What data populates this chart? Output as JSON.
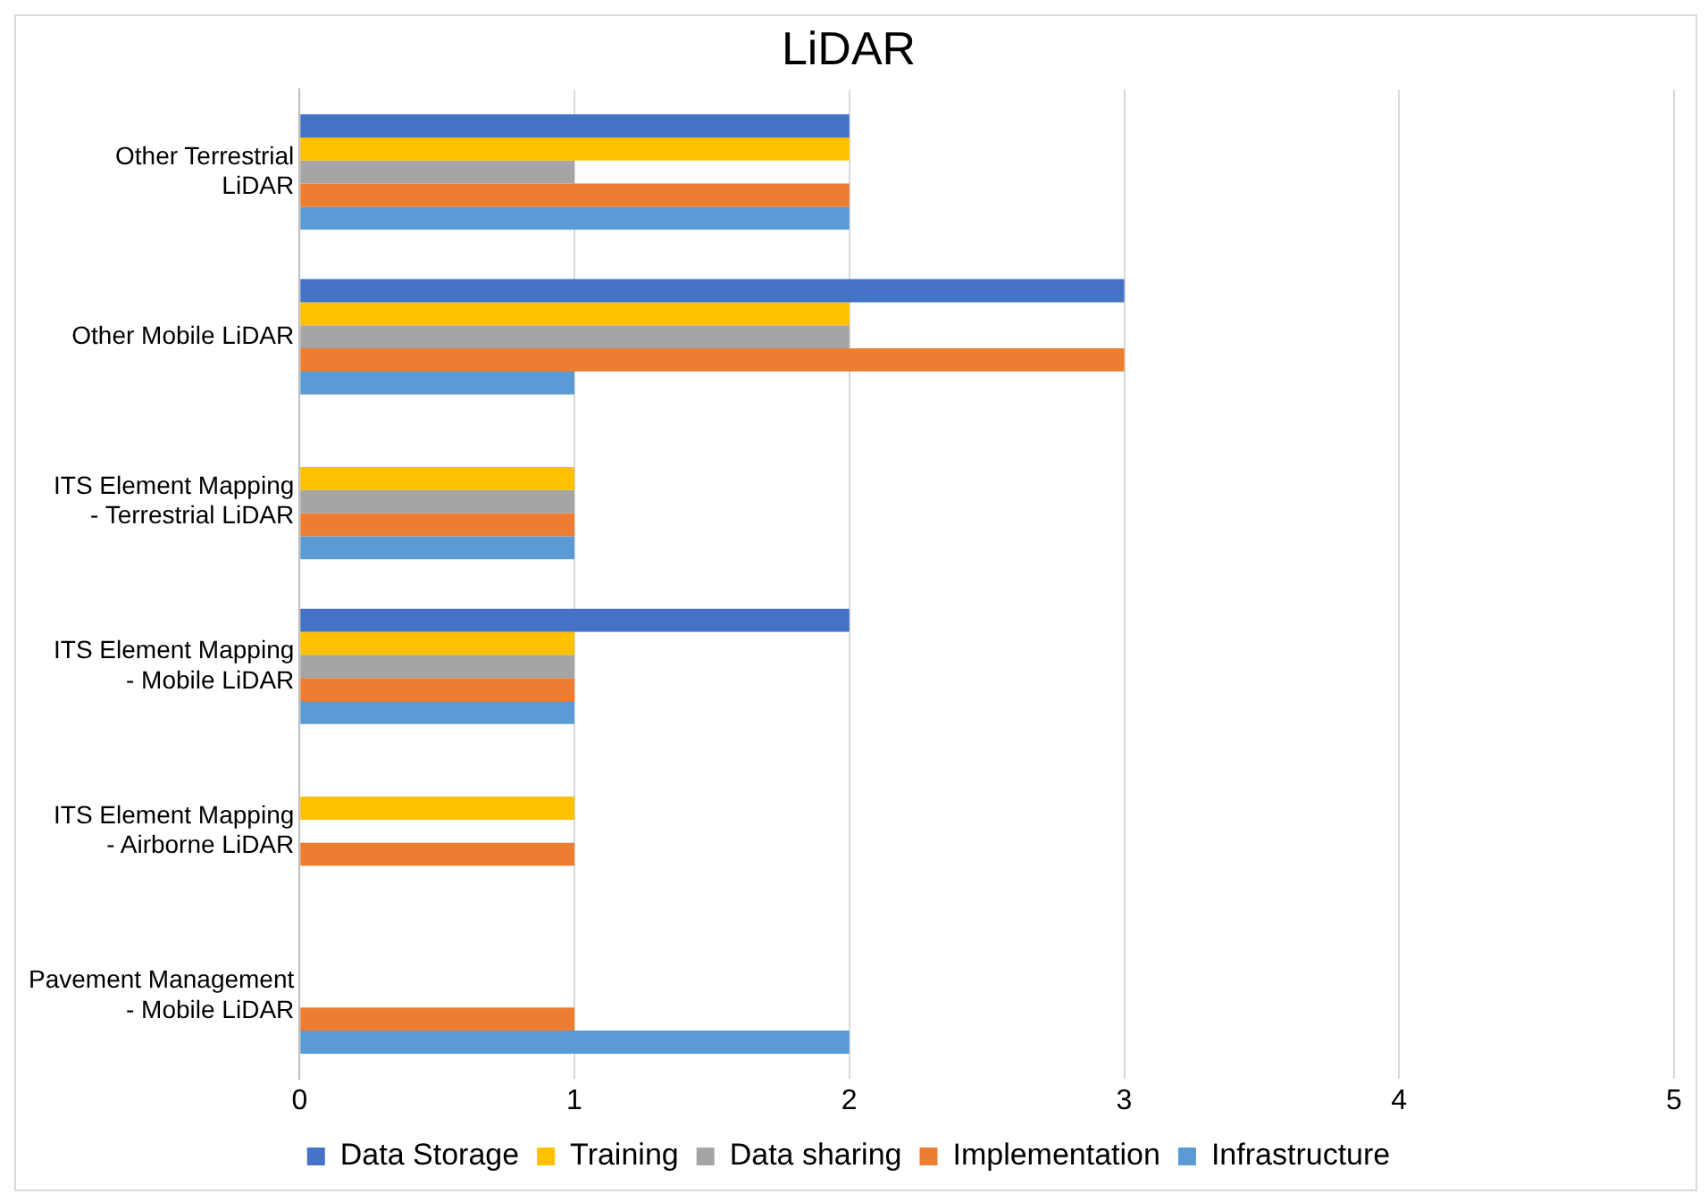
{
  "chart_data": {
    "type": "bar",
    "orientation": "horizontal",
    "title": "LiDAR",
    "categories": [
      "Other Terrestrial LiDAR",
      "Other Mobile LiDAR",
      "ITS Element Mapping - Terrestrial LiDAR",
      "ITS Element Mapping - Mobile LiDAR",
      "ITS Element Mapping - Airborne LiDAR",
      "Pavement Management - Mobile LiDAR"
    ],
    "series": [
      {
        "name": "Data Storage",
        "color": "#4472c4",
        "values": [
          2,
          3,
          null,
          2,
          null,
          null
        ]
      },
      {
        "name": "Training",
        "color": "#ffc000",
        "values": [
          2,
          2,
          1,
          1,
          1,
          null
        ]
      },
      {
        "name": "Data sharing",
        "color": "#a5a5a5",
        "values": [
          1,
          2,
          1,
          1,
          null,
          null
        ]
      },
      {
        "name": "Implementation",
        "color": "#ed7d31",
        "values": [
          2,
          3,
          1,
          1,
          1,
          1
        ]
      },
      {
        "name": "Infrastructure",
        "color": "#5b9bd5",
        "values": [
          2,
          1,
          1,
          1,
          null,
          2
        ]
      }
    ],
    "xlim": [
      0,
      5
    ],
    "xticks": [
      0,
      1,
      2,
      3,
      4,
      5
    ],
    "grid": "x",
    "legend": "bottom"
  }
}
